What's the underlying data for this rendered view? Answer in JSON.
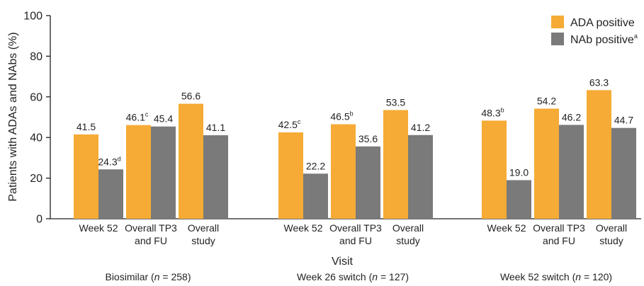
{
  "chart_data": {
    "type": "bar",
    "ylabel": "Patients with ADAs and NAbs (%)",
    "xlabel": "Visit",
    "ylim": [
      0,
      100
    ],
    "yticks": [
      0,
      20,
      40,
      60,
      80,
      100
    ],
    "grid": false,
    "legend_position": "top-right",
    "series": [
      {
        "name": "ADA positive",
        "superscript": "",
        "color": "#f5ab35"
      },
      {
        "name": "NAb positive",
        "superscript": "a",
        "color": "#7a7a7a"
      }
    ],
    "groups": [
      {
        "label_prefix": "Biosimilar (",
        "label_n": "n",
        "label_suffix": " = 258)",
        "categories": [
          {
            "label": [
              "Week 52"
            ],
            "values": [
              41.5,
              24.3
            ],
            "superscripts": [
              "",
              "d"
            ]
          },
          {
            "label": [
              "Overall TP3",
              "and FU"
            ],
            "values": [
              46.1,
              45.4
            ],
            "superscripts": [
              "c",
              ""
            ]
          },
          {
            "label": [
              "Overall",
              "study"
            ],
            "values": [
              56.6,
              41.1
            ],
            "superscripts": [
              "",
              ""
            ]
          }
        ]
      },
      {
        "label_prefix": "Week 26 switch (",
        "label_n": "n",
        "label_suffix": " = 127)",
        "categories": [
          {
            "label": [
              "Week 52"
            ],
            "values": [
              42.5,
              22.2
            ],
            "superscripts": [
              "c",
              ""
            ]
          },
          {
            "label": [
              "Overall TP3",
              "and FU"
            ],
            "values": [
              46.5,
              35.6
            ],
            "superscripts": [
              "b",
              ""
            ]
          },
          {
            "label": [
              "Overall",
              "study"
            ],
            "values": [
              53.5,
              41.2
            ],
            "superscripts": [
              "",
              ""
            ]
          }
        ]
      },
      {
        "label_prefix": "Week 52 switch (",
        "label_n": "n",
        "label_suffix": " = 120)",
        "categories": [
          {
            "label": [
              "Week 52"
            ],
            "values": [
              48.3,
              19.0
            ],
            "superscripts": [
              "b",
              ""
            ]
          },
          {
            "label": [
              "Overall TP3",
              "and FU"
            ],
            "values": [
              54.2,
              46.2
            ],
            "superscripts": [
              "",
              ""
            ]
          },
          {
            "label": [
              "Overall",
              "study"
            ],
            "values": [
              63.3,
              44.7
            ],
            "superscripts": [
              "",
              ""
            ]
          }
        ]
      }
    ]
  }
}
